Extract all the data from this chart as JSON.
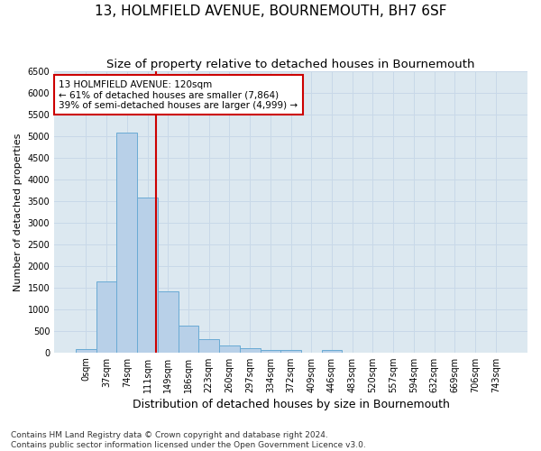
{
  "title": "13, HOLMFIELD AVENUE, BOURNEMOUTH, BH7 6SF",
  "subtitle": "Size of property relative to detached houses in Bournemouth",
  "xlabel": "Distribution of detached houses by size in Bournemouth",
  "ylabel": "Number of detached properties",
  "footer_line1": "Contains HM Land Registry data © Crown copyright and database right 2024.",
  "footer_line2": "Contains public sector information licensed under the Open Government Licence v3.0.",
  "bar_labels": [
    "0sqm",
    "37sqm",
    "74sqm",
    "111sqm",
    "149sqm",
    "186sqm",
    "223sqm",
    "260sqm",
    "297sqm",
    "334sqm",
    "372sqm",
    "409sqm",
    "446sqm",
    "483sqm",
    "520sqm",
    "557sqm",
    "594sqm",
    "632sqm",
    "669sqm",
    "706sqm",
    "743sqm"
  ],
  "bar_values": [
    75,
    1640,
    5080,
    3580,
    1420,
    620,
    310,
    155,
    100,
    60,
    50,
    0,
    50,
    0,
    0,
    0,
    0,
    0,
    0,
    0,
    0
  ],
  "bar_color": "#b8d0e8",
  "bar_edge_color": "#6aaad4",
  "vline_x": 3.42,
  "vline_color": "#cc0000",
  "annotation_text": "13 HOLMFIELD AVENUE: 120sqm\n← 61% of detached houses are smaller (7,864)\n39% of semi-detached houses are larger (4,999) →",
  "annotation_box_color": "#ffffff",
  "annotation_box_edge": "#cc0000",
  "ylim": [
    0,
    6500
  ],
  "yticks": [
    0,
    500,
    1000,
    1500,
    2000,
    2500,
    3000,
    3500,
    4000,
    4500,
    5000,
    5500,
    6000,
    6500
  ],
  "grid_color": "#c8d8e8",
  "bg_color": "#dce8f0",
  "fig_bg_color": "#ffffff",
  "title_fontsize": 11,
  "subtitle_fontsize": 9.5,
  "ylabel_fontsize": 8,
  "xlabel_fontsize": 9,
  "tick_fontsize": 7,
  "footer_fontsize": 6.5,
  "annotation_fontsize": 7.5
}
